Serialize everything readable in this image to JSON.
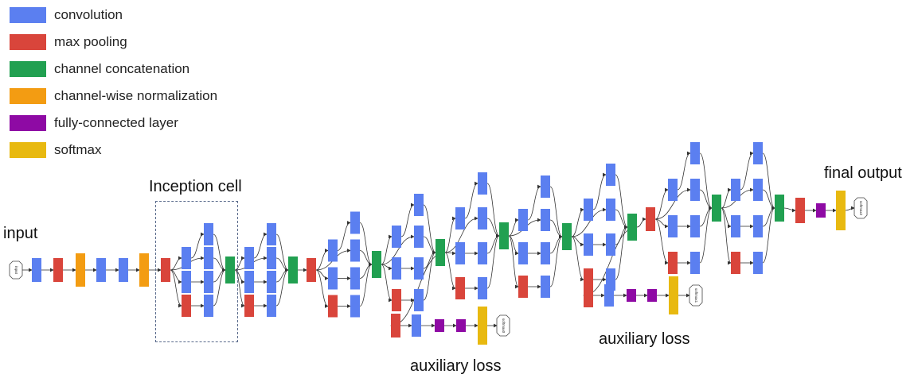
{
  "legend": [
    {
      "label": "convolution",
      "color": "#5b7ff0"
    },
    {
      "label": "max pooling",
      "color": "#d9453b"
    },
    {
      "label": "channel concatenation",
      "color": "#21a051"
    },
    {
      "label": "channel-wise normalization",
      "color": "#f39c12"
    },
    {
      "label": "fully-connected layer",
      "color": "#8e0aa4"
    },
    {
      "label": "softmax",
      "color": "#e8b910"
    }
  ],
  "annotations": {
    "input": "input",
    "inception_cell": "Inception cell",
    "final_output": "final output",
    "aux_loss_1": "auxiliary loss",
    "aux_loss_2": "auxiliary loss"
  },
  "colors": {
    "conv": "#5b7ff0",
    "pool": "#d9453b",
    "concat": "#21a051",
    "norm": "#f39c12",
    "fc": "#8e0aa4",
    "softmax": "#e8b910",
    "edge": "#333333"
  },
  "nodes": {
    "input": "input",
    "softmax0": "softmax0",
    "softmax1": "softmax1",
    "softmax2": "softmax2"
  }
}
